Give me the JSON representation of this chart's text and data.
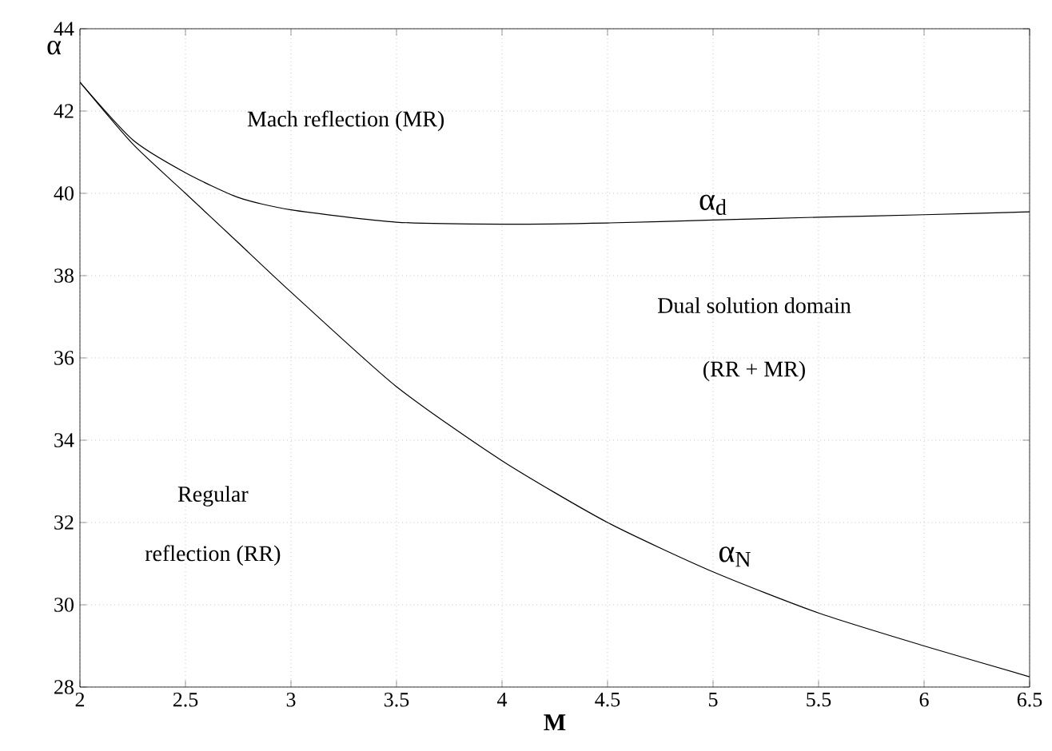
{
  "chart_data": {
    "type": "line",
    "xlabel": "**M**",
    "ylabel": "α",
    "xlim": [
      2,
      6.5
    ],
    "ylim": [
      28,
      44
    ],
    "xticks": [
      2,
      2.5,
      3,
      3.5,
      4,
      4.5,
      5,
      5.5,
      6,
      6.5
    ],
    "yticks": [
      28,
      30,
      32,
      34,
      36,
      38,
      40,
      42,
      44
    ],
    "grid": true,
    "marker": "none",
    "line_style": "solid",
    "series": [
      {
        "name": "α$_{d}$",
        "color": "#000000",
        "x": [
          2,
          2.25,
          2.5,
          2.75,
          3,
          3.5,
          4,
          4.5,
          5,
          5.5,
          6,
          6.5
        ],
        "values": [
          42.7,
          41.3,
          40.5,
          39.9,
          39.6,
          39.3,
          39.25,
          39.28,
          39.35,
          39.42,
          39.48,
          39.55
        ]
      },
      {
        "name": "α$_{N}$",
        "color": "#000000",
        "x": [
          2,
          2.25,
          2.5,
          2.75,
          3,
          3.5,
          4,
          4.5,
          5,
          5.5,
          6,
          6.5
        ],
        "values": [
          42.7,
          41.2,
          40.0,
          38.8,
          37.6,
          35.3,
          33.5,
          32.0,
          30.8,
          29.8,
          29.0,
          28.25
        ]
      }
    ],
    "annotations": [
      "Mach reflection (MR)",
      "Dual solution domain",
      "(RR + MR)",
      "Regular",
      "reflection (RR)"
    ]
  }
}
